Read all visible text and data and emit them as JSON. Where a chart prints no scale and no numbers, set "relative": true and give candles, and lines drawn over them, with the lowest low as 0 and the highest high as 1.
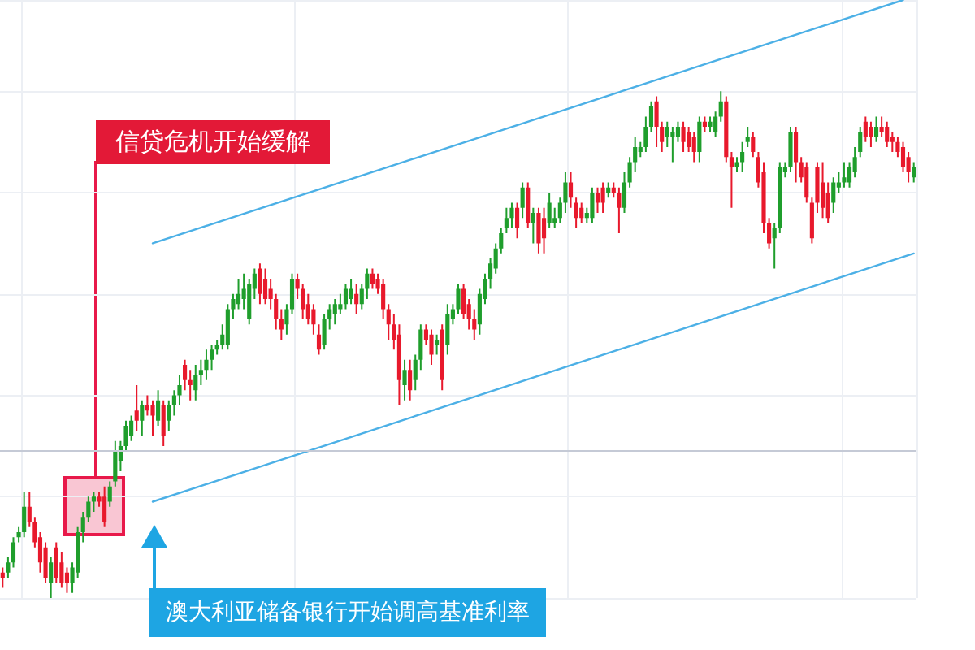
{
  "chart_data": {
    "type": "candlestick",
    "relative": true,
    "grid": true,
    "tick_labels": false,
    "marker": "none",
    "line_style": "solid",
    "annotations": [
      "信贷危机开始缓解",
      "澳大利亚储备银行开始调高基准利率"
    ],
    "categories": [
      null,
      null,
      null,
      null,
      null,
      null,
      null,
      null,
      null,
      null,
      null,
      null,
      null,
      null,
      null,
      null,
      null,
      null,
      null,
      null,
      null,
      null,
      null,
      null,
      null,
      null,
      null,
      null,
      null,
      null,
      null,
      null,
      null,
      null,
      null,
      null,
      null,
      null,
      null,
      null,
      null,
      null,
      null,
      null,
      null,
      null,
      null,
      null,
      null,
      null,
      null,
      null,
      null,
      null,
      null,
      null,
      null,
      null,
      null,
      null,
      null,
      null,
      null,
      null,
      null,
      null,
      null,
      null,
      null,
      null,
      null,
      null,
      null,
      null,
      null,
      null,
      null,
      null,
      null,
      null,
      null,
      null,
      null,
      null,
      null,
      null,
      null,
      null,
      null,
      null,
      null,
      null,
      null,
      null,
      null,
      null,
      null,
      null,
      null,
      null,
      null,
      null,
      null,
      null,
      null,
      null,
      null,
      null,
      null,
      null,
      null,
      null,
      null,
      null,
      null,
      null,
      null,
      null,
      null,
      null,
      null,
      null,
      null,
      null,
      null,
      null,
      null,
      null,
      null,
      null,
      null,
      null,
      null,
      null,
      null,
      null,
      null,
      null,
      null,
      null,
      null,
      null,
      null,
      null,
      null,
      null,
      null,
      null,
      null,
      null,
      null,
      null,
      null,
      null,
      null,
      null,
      null,
      null,
      null,
      null,
      null,
      null,
      null,
      null,
      null,
      null,
      null,
      null,
      null,
      null,
      null
    ],
    "ohlc": [
      [
        0.05,
        0.06,
        0.02,
        0.04
      ],
      [
        0.05,
        0.08,
        0.04,
        0.07
      ],
      [
        0.07,
        0.12,
        0.06,
        0.11
      ],
      [
        0.12,
        0.14,
        0.11,
        0.13
      ],
      [
        0.13,
        0.21,
        0.12,
        0.18
      ],
      [
        0.18,
        0.21,
        0.14,
        0.15
      ],
      [
        0.15,
        0.16,
        0.1,
        0.11
      ],
      [
        0.12,
        0.13,
        0.05,
        0.07
      ],
      [
        0.1,
        0.11,
        0.03,
        0.04
      ],
      [
        0.03,
        0.08,
        0.0,
        0.07
      ],
      [
        0.1,
        0.11,
        0.03,
        0.04
      ],
      [
        0.07,
        0.09,
        0.02,
        0.03
      ],
      [
        0.05,
        0.06,
        0.01,
        0.03
      ],
      [
        0.03,
        0.07,
        0.01,
        0.06
      ],
      [
        0.05,
        0.14,
        0.04,
        0.13
      ],
      [
        0.13,
        0.17,
        0.11,
        0.16
      ],
      [
        0.16,
        0.2,
        0.15,
        0.19
      ],
      [
        0.19,
        0.21,
        0.17,
        0.2
      ],
      [
        0.2,
        0.21,
        0.18,
        0.19
      ],
      [
        0.2,
        0.22,
        0.14,
        0.15
      ],
      [
        0.19,
        0.23,
        0.18,
        0.22
      ],
      [
        0.23,
        0.31,
        0.22,
        0.29
      ],
      [
        0.27,
        0.31,
        0.25,
        0.3
      ],
      [
        0.3,
        0.35,
        0.29,
        0.34
      ],
      [
        0.32,
        0.36,
        0.31,
        0.35
      ],
      [
        0.37,
        0.42,
        0.33,
        0.35
      ],
      [
        0.35,
        0.39,
        0.32,
        0.38
      ],
      [
        0.38,
        0.4,
        0.36,
        0.37
      ],
      [
        0.38,
        0.39,
        0.32,
        0.36
      ],
      [
        0.35,
        0.41,
        0.34,
        0.39
      ],
      [
        0.38,
        0.39,
        0.3,
        0.32
      ],
      [
        0.35,
        0.39,
        0.33,
        0.38
      ],
      [
        0.38,
        0.41,
        0.36,
        0.4
      ],
      [
        0.4,
        0.44,
        0.38,
        0.42
      ],
      [
        0.46,
        0.47,
        0.41,
        0.43
      ],
      [
        0.43,
        0.45,
        0.39,
        0.42
      ],
      [
        0.41,
        0.46,
        0.39,
        0.44
      ],
      [
        0.44,
        0.47,
        0.42,
        0.45
      ],
      [
        0.45,
        0.49,
        0.43,
        0.47
      ],
      [
        0.47,
        0.5,
        0.45,
        0.49
      ],
      [
        0.49,
        0.51,
        0.48,
        0.5
      ],
      [
        0.5,
        0.54,
        0.49,
        0.52
      ],
      [
        0.5,
        0.58,
        0.49,
        0.57
      ],
      [
        0.57,
        0.6,
        0.55,
        0.59
      ],
      [
        0.58,
        0.63,
        0.57,
        0.6
      ],
      [
        0.59,
        0.64,
        0.57,
        0.61
      ],
      [
        0.55,
        0.63,
        0.54,
        0.62
      ],
      [
        0.61,
        0.65,
        0.59,
        0.64
      ],
      [
        0.65,
        0.66,
        0.58,
        0.6
      ],
      [
        0.63,
        0.65,
        0.58,
        0.59
      ],
      [
        0.61,
        0.63,
        0.57,
        0.59
      ],
      [
        0.59,
        0.6,
        0.53,
        0.55
      ],
      [
        0.55,
        0.57,
        0.51,
        0.53
      ],
      [
        0.54,
        0.58,
        0.52,
        0.57
      ],
      [
        0.57,
        0.64,
        0.56,
        0.63
      ],
      [
        0.63,
        0.64,
        0.59,
        0.61
      ],
      [
        0.61,
        0.62,
        0.55,
        0.57
      ],
      [
        0.58,
        0.6,
        0.54,
        0.55
      ],
      [
        0.57,
        0.58,
        0.52,
        0.54
      ],
      [
        0.52,
        0.54,
        0.48,
        0.49
      ],
      [
        0.5,
        0.56,
        0.49,
        0.55
      ],
      [
        0.55,
        0.58,
        0.53,
        0.57
      ],
      [
        0.56,
        0.59,
        0.54,
        0.58
      ],
      [
        0.57,
        0.6,
        0.56,
        0.58
      ],
      [
        0.58,
        0.62,
        0.57,
        0.61
      ],
      [
        0.59,
        0.63,
        0.58,
        0.61
      ],
      [
        0.6,
        0.62,
        0.56,
        0.58
      ],
      [
        0.58,
        0.62,
        0.57,
        0.61
      ],
      [
        0.61,
        0.65,
        0.59,
        0.64
      ],
      [
        0.64,
        0.65,
        0.61,
        0.62
      ],
      [
        0.63,
        0.64,
        0.6,
        0.61
      ],
      [
        0.62,
        0.63,
        0.55,
        0.57
      ],
      [
        0.57,
        0.58,
        0.51,
        0.54
      ],
      [
        0.54,
        0.56,
        0.49,
        0.51
      ],
      [
        0.52,
        0.54,
        0.38,
        0.43
      ],
      [
        0.42,
        0.47,
        0.39,
        0.45
      ],
      [
        0.45,
        0.47,
        0.39,
        0.41
      ],
      [
        0.43,
        0.48,
        0.41,
        0.47
      ],
      [
        0.47,
        0.54,
        0.45,
        0.53
      ],
      [
        0.53,
        0.54,
        0.5,
        0.51
      ],
      [
        0.52,
        0.53,
        0.46,
        0.48
      ],
      [
        0.5,
        0.52,
        0.48,
        0.51
      ],
      [
        0.53,
        0.54,
        0.41,
        0.43
      ],
      [
        0.5,
        0.58,
        0.48,
        0.56
      ],
      [
        0.55,
        0.58,
        0.54,
        0.57
      ],
      [
        0.57,
        0.62,
        0.56,
        0.61
      ],
      [
        0.61,
        0.62,
        0.55,
        0.56
      ],
      [
        0.58,
        0.59,
        0.53,
        0.55
      ],
      [
        0.55,
        0.57,
        0.51,
        0.53
      ],
      [
        0.54,
        0.61,
        0.52,
        0.6
      ],
      [
        0.59,
        0.64,
        0.58,
        0.63
      ],
      [
        0.63,
        0.67,
        0.61,
        0.66
      ],
      [
        0.65,
        0.7,
        0.64,
        0.69
      ],
      [
        0.69,
        0.73,
        0.68,
        0.72
      ],
      [
        0.73,
        0.77,
        0.72,
        0.75
      ],
      [
        0.75,
        0.78,
        0.73,
        0.77
      ],
      [
        0.77,
        0.78,
        0.71,
        0.73
      ],
      [
        0.77,
        0.82,
        0.75,
        0.81
      ],
      [
        0.81,
        0.82,
        0.73,
        0.74
      ],
      [
        0.74,
        0.77,
        0.7,
        0.76
      ],
      [
        0.76,
        0.77,
        0.68,
        0.7
      ],
      [
        0.75,
        0.77,
        0.68,
        0.71
      ],
      [
        0.74,
        0.8,
        0.73,
        0.78
      ],
      [
        0.74,
        0.77,
        0.73,
        0.75
      ],
      [
        0.75,
        0.79,
        0.74,
        0.78
      ],
      [
        0.78,
        0.84,
        0.76,
        0.82
      ],
      [
        0.82,
        0.84,
        0.77,
        0.79
      ],
      [
        0.78,
        0.79,
        0.73,
        0.75
      ],
      [
        0.77,
        0.78,
        0.74,
        0.75
      ],
      [
        0.75,
        0.77,
        0.74,
        0.76
      ],
      [
        0.75,
        0.81,
        0.74,
        0.8
      ],
      [
        0.8,
        0.81,
        0.76,
        0.78
      ],
      [
        0.81,
        0.82,
        0.76,
        0.78
      ],
      [
        0.8,
        0.82,
        0.79,
        0.81
      ],
      [
        0.81,
        0.82,
        0.79,
        0.8
      ],
      [
        0.8,
        0.81,
        0.72,
        0.77
      ],
      [
        0.77,
        0.84,
        0.76,
        0.82
      ],
      [
        0.82,
        0.87,
        0.81,
        0.86
      ],
      [
        0.86,
        0.91,
        0.84,
        0.89
      ],
      [
        0.88,
        0.9,
        0.87,
        0.89
      ],
      [
        0.89,
        0.95,
        0.88,
        0.93
      ],
      [
        0.93,
        0.98,
        0.92,
        0.97
      ],
      [
        0.98,
        0.99,
        0.89,
        0.93
      ],
      [
        0.93,
        0.94,
        0.88,
        0.9
      ],
      [
        0.91,
        0.94,
        0.89,
        0.93
      ],
      [
        0.91,
        0.93,
        0.86,
        0.92
      ],
      [
        0.91,
        0.94,
        0.9,
        0.93
      ],
      [
        0.93,
        0.94,
        0.88,
        0.9
      ],
      [
        0.92,
        0.93,
        0.88,
        0.89
      ],
      [
        0.91,
        0.92,
        0.86,
        0.88
      ],
      [
        0.88,
        0.95,
        0.86,
        0.94
      ],
      [
        0.94,
        0.95,
        0.92,
        0.93
      ],
      [
        0.93,
        0.95,
        0.92,
        0.94
      ],
      [
        0.92,
        0.96,
        0.91,
        0.95
      ],
      [
        0.95,
        1.0,
        0.94,
        0.98
      ],
      [
        0.98,
        0.99,
        0.86,
        0.87
      ],
      [
        0.87,
        0.88,
        0.77,
        0.85
      ],
      [
        0.85,
        0.87,
        0.84,
        0.86
      ],
      [
        0.86,
        0.9,
        0.84,
        0.88
      ],
      [
        0.9,
        0.93,
        0.89,
        0.91
      ],
      [
        0.91,
        0.92,
        0.87,
        0.88
      ],
      [
        0.87,
        0.88,
        0.81,
        0.82
      ],
      [
        0.84,
        0.86,
        0.72,
        0.74
      ],
      [
        0.74,
        0.75,
        0.69,
        0.7
      ],
      [
        0.71,
        0.74,
        0.65,
        0.73
      ],
      [
        0.73,
        0.86,
        0.72,
        0.85
      ],
      [
        0.84,
        0.86,
        0.83,
        0.85
      ],
      [
        0.85,
        0.93,
        0.84,
        0.92
      ],
      [
        0.92,
        0.93,
        0.82,
        0.86
      ],
      [
        0.86,
        0.87,
        0.82,
        0.83
      ],
      [
        0.85,
        0.86,
        0.78,
        0.79
      ],
      [
        0.78,
        0.79,
        0.7,
        0.71
      ],
      [
        0.85,
        0.86,
        0.76,
        0.78
      ],
      [
        0.82,
        0.86,
        0.75,
        0.77
      ],
      [
        0.8,
        0.82,
        0.74,
        0.75
      ],
      [
        0.78,
        0.83,
        0.76,
        0.82
      ],
      [
        0.81,
        0.84,
        0.8,
        0.82
      ],
      [
        0.82,
        0.86,
        0.81,
        0.83
      ],
      [
        0.82,
        0.86,
        0.81,
        0.85
      ],
      [
        0.84,
        0.89,
        0.83,
        0.87
      ],
      [
        0.88,
        0.93,
        0.87,
        0.92
      ],
      [
        0.94,
        0.95,
        0.9,
        0.91
      ],
      [
        0.93,
        0.94,
        0.89,
        0.91
      ],
      [
        0.91,
        0.95,
        0.9,
        0.93
      ],
      [
        0.93,
        0.95,
        0.91,
        0.92
      ],
      [
        0.93,
        0.94,
        0.89,
        0.9
      ],
      [
        0.91,
        0.92,
        0.88,
        0.9
      ],
      [
        0.9,
        0.91,
        0.87,
        0.88
      ],
      [
        0.89,
        0.9,
        0.84,
        0.85
      ],
      [
        0.87,
        0.88,
        0.82,
        0.84
      ],
      [
        0.83,
        0.86,
        0.82,
        0.85
      ]
    ],
    "colors": [
      "#e8192c",
      "#1f9e2c",
      "#1f9e2c",
      "#1f9e2c",
      "#1f9e2c",
      "#e8192c",
      "#e8192c",
      "#e8192c",
      "#e8192c",
      "#1f9e2c",
      "#e8192c",
      "#e8192c",
      "#e8192c",
      "#1f9e2c",
      "#1f9e2c",
      "#1f9e2c",
      "#1f9e2c",
      "#1f9e2c",
      "#e8192c",
      "#e8192c",
      "#1f9e2c",
      "#1f9e2c",
      "#1f9e2c",
      "#1f9e2c",
      "#1f9e2c",
      "#e8192c",
      "#1f9e2c",
      "#e8192c",
      "#e8192c",
      "#1f9e2c",
      "#e8192c",
      "#1f9e2c",
      "#1f9e2c",
      "#1f9e2c",
      "#e8192c",
      "#e8192c",
      "#1f9e2c",
      "#1f9e2c",
      "#1f9e2c",
      "#1f9e2c",
      "#1f9e2c",
      "#1f9e2c",
      "#1f9e2c",
      "#1f9e2c",
      "#1f9e2c",
      "#1f9e2c",
      "#1f9e2c",
      "#1f9e2c",
      "#e8192c",
      "#e8192c",
      "#e8192c",
      "#e8192c",
      "#e8192c",
      "#1f9e2c",
      "#1f9e2c",
      "#e8192c",
      "#e8192c",
      "#e8192c",
      "#e8192c",
      "#e8192c",
      "#1f9e2c",
      "#1f9e2c",
      "#1f9e2c",
      "#1f9e2c",
      "#1f9e2c",
      "#1f9e2c",
      "#e8192c",
      "#1f9e2c",
      "#1f9e2c",
      "#e8192c",
      "#e8192c",
      "#e8192c",
      "#e8192c",
      "#e8192c",
      "#e8192c",
      "#1f9e2c",
      "#e8192c",
      "#1f9e2c",
      "#1f9e2c",
      "#e8192c",
      "#e8192c",
      "#1f9e2c",
      "#e8192c",
      "#1f9e2c",
      "#1f9e2c",
      "#1f9e2c",
      "#e8192c",
      "#e8192c",
      "#e8192c",
      "#1f9e2c",
      "#1f9e2c",
      "#1f9e2c",
      "#1f9e2c",
      "#1f9e2c",
      "#1f9e2c",
      "#1f9e2c",
      "#e8192c",
      "#1f9e2c",
      "#e8192c",
      "#1f9e2c",
      "#e8192c",
      "#e8192c",
      "#1f9e2c",
      "#1f9e2c",
      "#1f9e2c",
      "#1f9e2c",
      "#e8192c",
      "#e8192c",
      "#e8192c",
      "#1f9e2c",
      "#1f9e2c",
      "#e8192c",
      "#e8192c",
      "#1f9e2c",
      "#e8192c",
      "#e8192c",
      "#1f9e2c",
      "#1f9e2c",
      "#1f9e2c",
      "#1f9e2c",
      "#1f9e2c",
      "#1f9e2c",
      "#e8192c",
      "#e8192c",
      "#1f9e2c",
      "#1f9e2c",
      "#1f9e2c",
      "#e8192c",
      "#e8192c",
      "#e8192c",
      "#1f9e2c",
      "#e8192c",
      "#1f9e2c",
      "#1f9e2c",
      "#1f9e2c",
      "#e8192c",
      "#e8192c",
      "#1f9e2c",
      "#1f9e2c",
      "#1f9e2c",
      "#e8192c",
      "#e8192c",
      "#e8192c",
      "#e8192c",
      "#1f9e2c",
      "#1f9e2c",
      "#1f9e2c",
      "#1f9e2c",
      "#e8192c",
      "#e8192c",
      "#e8192c",
      "#e8192c",
      "#e8192c",
      "#e8192c",
      "#e8192c",
      "#1f9e2c",
      "#1f9e2c",
      "#1f9e2c",
      "#1f9e2c",
      "#1f9e2c",
      "#1f9e2c",
      "#e8192c",
      "#e8192c",
      "#1f9e2c",
      "#e8192c",
      "#e8192c",
      "#e8192c",
      "#e8192c",
      "#e8192c",
      "#e8192c",
      "#1f9e2c"
    ],
    "series": [
      {
        "type": "line",
        "color": "#4cb0e6",
        "values": [
          null,
          null,
          null,
          null,
          null,
          null,
          null,
          null,
          null,
          null,
          null,
          null,
          null,
          null,
          null,
          null,
          null,
          null,
          null,
          null,
          null,
          null,
          null,
          null,
          null,
          null,
          null,
          null,
          0.7,
          null,
          null,
          null,
          null,
          null,
          null,
          null,
          null,
          null,
          null,
          null,
          null,
          null,
          null,
          null,
          null,
          null,
          null,
          null,
          null,
          null,
          null,
          null,
          null,
          null,
          null,
          null,
          null,
          null,
          null,
          null,
          null,
          null,
          null,
          null,
          null,
          null,
          null,
          null,
          null,
          null,
          null,
          null,
          null,
          null,
          null,
          null,
          null,
          null,
          null,
          null,
          null,
          null,
          null,
          null,
          null,
          null,
          null,
          null,
          null,
          null,
          null,
          null,
          null,
          null,
          null,
          null,
          null,
          null,
          null,
          null,
          null,
          null,
          null,
          null,
          null,
          null,
          null,
          null,
          null,
          null,
          null,
          null,
          null,
          null,
          null,
          null,
          null,
          null,
          null,
          null,
          null,
          null,
          null,
          null,
          null,
          null,
          null,
          null,
          null,
          null,
          null,
          null,
          null,
          null,
          null,
          null,
          null,
          null,
          null,
          null,
          null,
          null,
          null,
          null,
          null,
          null,
          null,
          null,
          null,
          null,
          null,
          null,
          null,
          null,
          null,
          null,
          null,
          null,
          null,
          null,
          null,
          null,
          null,
          null,
          null,
          null,
          null,
          null,
          1.18,
          null,
          null
        ]
      },
      {
        "type": "line",
        "color": "#4cb0e6",
        "values": [
          null,
          null,
          null,
          null,
          null,
          null,
          null,
          null,
          null,
          null,
          null,
          null,
          null,
          null,
          null,
          null,
          null,
          null,
          null,
          null,
          null,
          null,
          null,
          null,
          null,
          null,
          null,
          null,
          0.19,
          null,
          null,
          null,
          null,
          null,
          null,
          null,
          null,
          null,
          null,
          null,
          null,
          null,
          null,
          null,
          null,
          null,
          null,
          null,
          null,
          null,
          null,
          null,
          null,
          null,
          null,
          null,
          null,
          null,
          null,
          null,
          null,
          null,
          null,
          null,
          null,
          null,
          null,
          null,
          null,
          null,
          null,
          null,
          null,
          null,
          null,
          null,
          null,
          null,
          null,
          null,
          null,
          null,
          null,
          null,
          null,
          null,
          null,
          null,
          null,
          null,
          null,
          null,
          null,
          null,
          null,
          null,
          null,
          null,
          null,
          null,
          null,
          null,
          null,
          null,
          null,
          null,
          null,
          null,
          null,
          null,
          null,
          null,
          null,
          null,
          null,
          null,
          null,
          null,
          null,
          null,
          null,
          null,
          null,
          null,
          null,
          null,
          null,
          null,
          null,
          null,
          null,
          null,
          null,
          null,
          null,
          null,
          null,
          null,
          null,
          null,
          null,
          null,
          null,
          null,
          null,
          null,
          null,
          null,
          null,
          null,
          null,
          null,
          null,
          null,
          null,
          null,
          null,
          null,
          null,
          null,
          null,
          null,
          null,
          null,
          null,
          null,
          null,
          null,
          null,
          null,
          0.68
        ]
      }
    ],
    "ref_lines": [
      {
        "axis": "y",
        "value": 0.29,
        "color": "#c5cad6"
      }
    ]
  }
}
